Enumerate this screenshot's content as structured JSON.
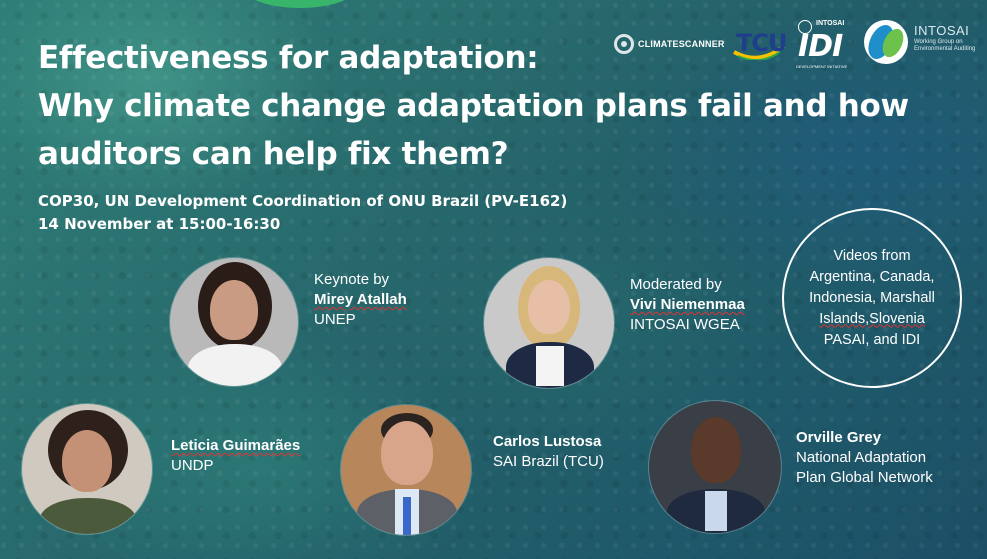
{
  "title": {
    "line1": "Effectiveness for adaptation:",
    "line2": "Why climate change adaptation plans fail and how",
    "line3": "auditors can help fix them?"
  },
  "event": {
    "venue": "COP30, UN Development Coordination of ONU Brazil (PV-E162)",
    "datetime": "14 November at 15:00-16:30"
  },
  "logos": {
    "climatescanner": "CLIMATESCANNER",
    "tcu": "TCU",
    "idi_top": "INTOSAI",
    "idi": "IDI",
    "idi_bottom": "DEVELOPMENT INITIATIVE",
    "wgea_name": "INTOSAI",
    "wgea_sub": "Working Group on Environmental Auditing"
  },
  "speakers": {
    "mirey": {
      "role": "Keynote by",
      "name": "Mirey Atallah",
      "org": "UNEP"
    },
    "vivi": {
      "role": "Moderated by",
      "name": "Vivi Niemenmaa",
      "org": "INTOSAI WGEA"
    },
    "leticia": {
      "name": "Leticia Guimarães",
      "org": "UNDP"
    },
    "carlos": {
      "name": "Carlos Lustosa",
      "org": "SAI Brazil (TCU)"
    },
    "orville": {
      "name": "Orville Grey",
      "org_line1": "National Adaptation",
      "org_line2": "Plan Global Network"
    }
  },
  "videos": {
    "line1": "Videos from",
    "line2": "Argentina, Canada,",
    "line3": "Indonesia, Marshall",
    "line4": "Islands,Slovenia",
    "line5": "PASAI, and IDI"
  },
  "colors": {
    "background": "#2a6f70",
    "text": "#ffffff",
    "tcu_blue": "#1f3f8c",
    "wgea_blue": "#1e8fc9",
    "wgea_green": "#6cc24a"
  }
}
